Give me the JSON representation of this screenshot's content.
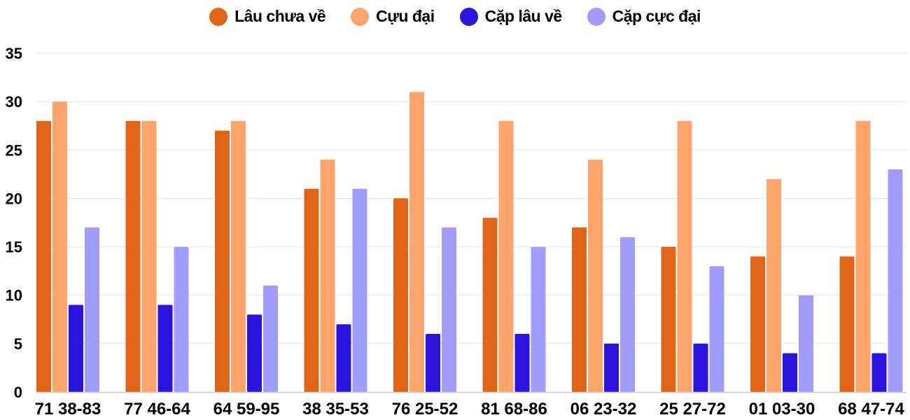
{
  "chart_data": {
    "type": "bar",
    "categories": [
      "71 38-83",
      "77 46-64",
      "64 59-95",
      "38 35-53",
      "76 25-52",
      "81 68-86",
      "06 23-32",
      "25 27-72",
      "01 03-30",
      "68 47-74"
    ],
    "series": [
      {
        "name": "Lâu chưa về",
        "color": "#e26417",
        "values": [
          28,
          28,
          27,
          21,
          20,
          18,
          17,
          15,
          14,
          14
        ]
      },
      {
        "name": "Cựu đại",
        "color": "#ffa56b",
        "values": [
          30,
          28,
          28,
          24,
          31,
          28,
          24,
          28,
          22,
          28
        ]
      },
      {
        "name": "Cặp lâu về",
        "color": "#2b13e0",
        "values": [
          9,
          9,
          8,
          7,
          6,
          6,
          5,
          5,
          4,
          4
        ]
      },
      {
        "name": "Cặp cực đại",
        "color": "#a29cff",
        "values": [
          17,
          15,
          11,
          21,
          17,
          15,
          16,
          13,
          10,
          23
        ]
      }
    ],
    "ylim": [
      0,
      35
    ],
    "yticks": [
      "0",
      "5",
      "10",
      "15",
      "20",
      "25",
      "30",
      "35"
    ],
    "grid": true,
    "legend": "top-center",
    "title": "",
    "xlabel": "",
    "ylabel": ""
  }
}
